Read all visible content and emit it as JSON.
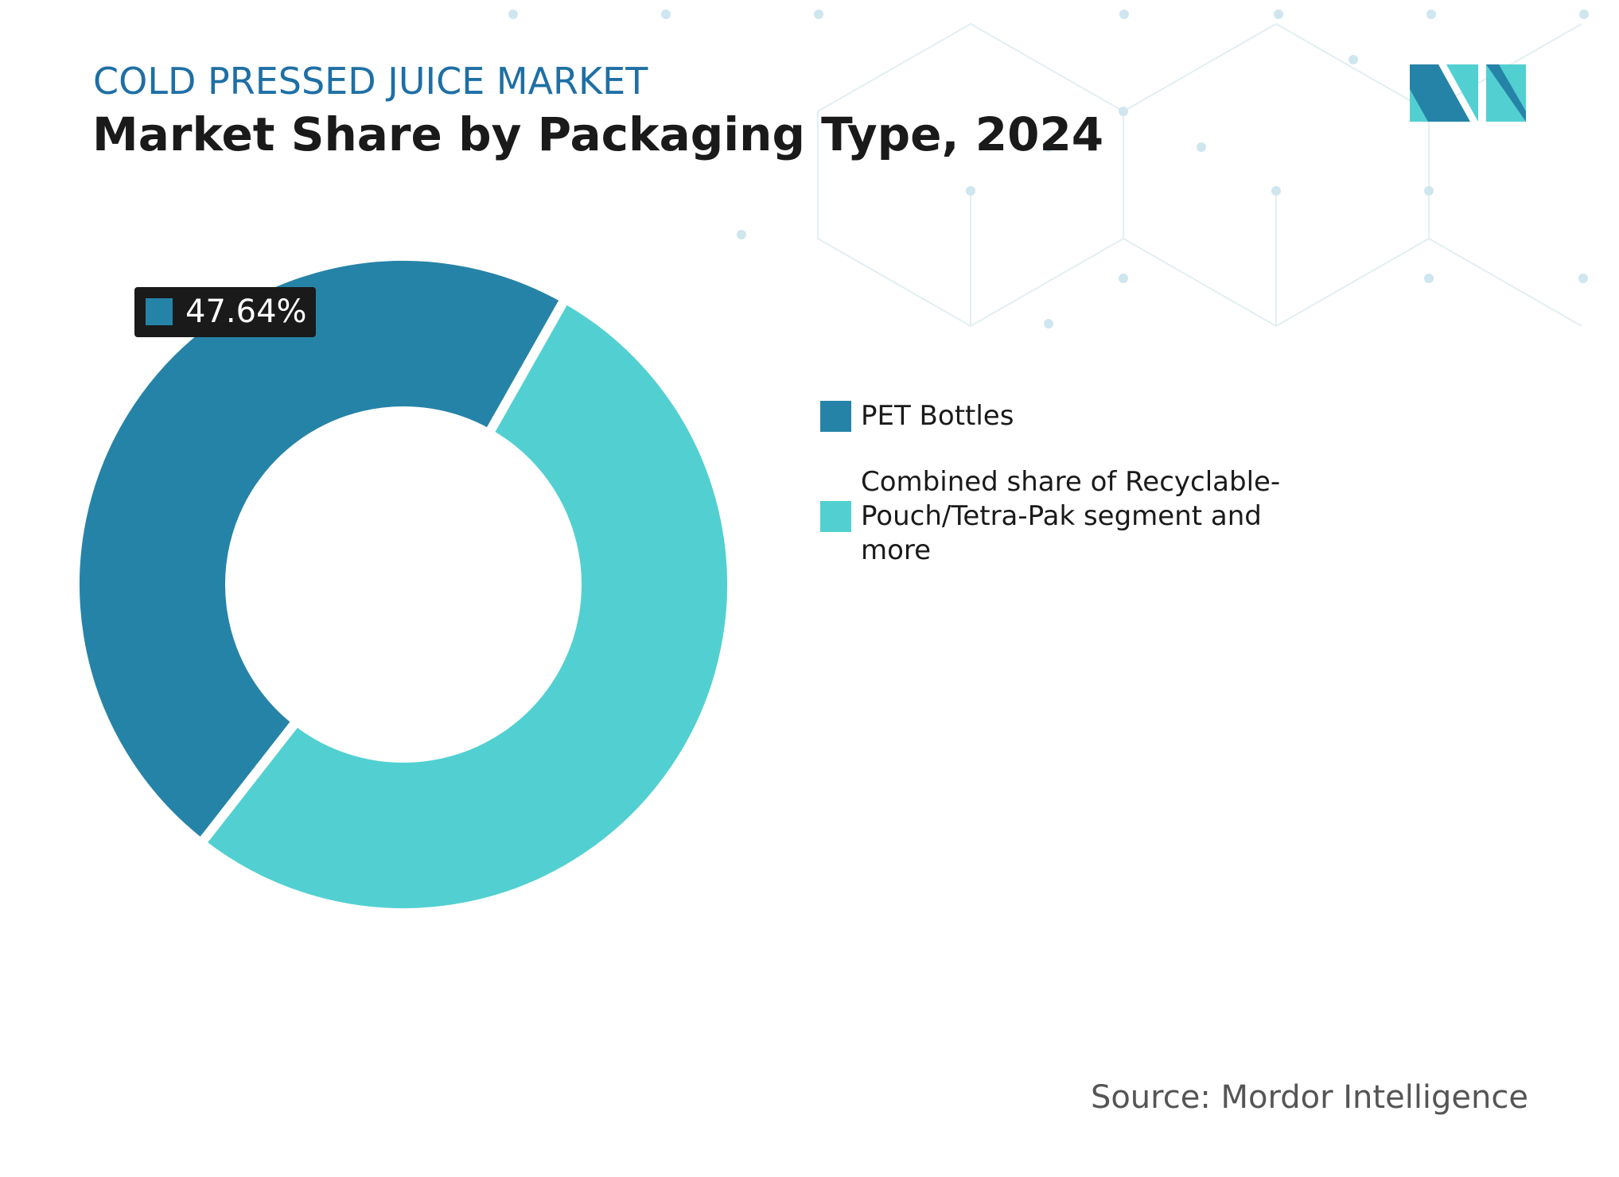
{
  "chart_data": {
    "type": "donut",
    "header": "COLD PRESSED JUICE MARKET",
    "title": "Market Share by Packaging Type, 2024",
    "categories": [
      "PET Bottles",
      "Combined share of Recyclable-Pouch/Tetra-Pak segment and more"
    ],
    "values": [
      47.64,
      52.36
    ],
    "value_labels": [
      "47.64%",
      null
    ],
    "colors": [
      "#2683a8",
      "#52d0d1"
    ],
    "source": "Source: Mordor Intelligence"
  }
}
